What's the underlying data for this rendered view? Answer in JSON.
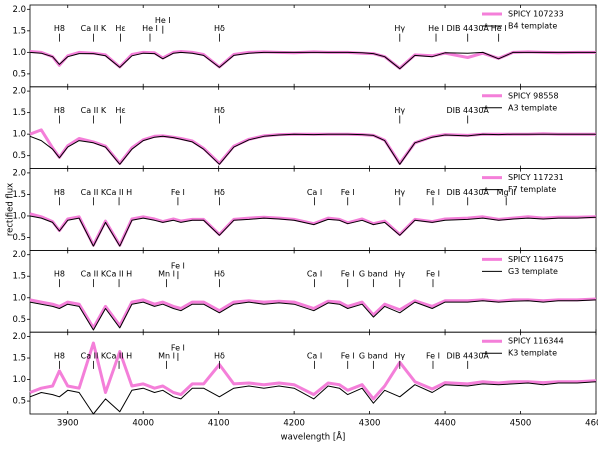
{
  "chart_data": [
    {
      "type": "line",
      "xlim": [
        3850,
        4600
      ],
      "ylim": [
        0.2,
        2.1
      ],
      "yticks": [
        0.5,
        {
          "value": 1.0,
          "label": "1.0"
        },
        1.5,
        {
          "value": 2.0,
          "label": "2.0"
        }
      ],
      "x": [
        3850,
        3865,
        3880,
        3889,
        3900,
        3915,
        3934,
        3950,
        3969,
        3985,
        4000,
        4015,
        4026,
        4040,
        4050,
        4065,
        4080,
        4101,
        4120,
        4140,
        4160,
        4180,
        4200,
        4226,
        4245,
        4260,
        4271,
        4290,
        4305,
        4320,
        4340,
        4360,
        4383,
        4400,
        4430,
        4450,
        4471,
        4490,
        4510,
        4530,
        4550,
        4575,
        4600
      ],
      "series": [
        {
          "name": "SPICY 107233",
          "color": "#f47fd9",
          "values": [
            1.02,
            1.0,
            0.9,
            0.7,
            0.92,
            1.0,
            0.98,
            0.94,
            0.66,
            0.95,
            1.0,
            0.99,
            0.87,
            1.0,
            1.02,
            1.0,
            0.95,
            0.66,
            0.95,
            1.0,
            1.01,
            1.0,
            0.99,
            1.01,
            1.0,
            1.0,
            1.0,
            0.98,
            0.97,
            0.9,
            0.63,
            0.94,
            0.92,
            0.98,
            0.88,
            0.98,
            0.86,
            1.0,
            1.01,
            1.0,
            0.99,
            1.0,
            1.0
          ]
        },
        {
          "name": "B4 template",
          "color": "#000000",
          "values": [
            1.0,
            0.98,
            0.9,
            0.72,
            0.9,
            0.97,
            0.97,
            0.92,
            0.65,
            0.92,
            0.98,
            0.97,
            0.85,
            0.98,
            1.0,
            0.98,
            0.93,
            0.65,
            0.93,
            0.98,
            1.0,
            1.0,
            1.0,
            1.0,
            1.0,
            1.0,
            1.0,
            0.99,
            0.97,
            0.9,
            0.62,
            0.93,
            0.9,
            0.99,
            0.98,
            1.0,
            0.85,
            1.0,
            1.0,
            1.0,
            1.0,
            1.0,
            1.0
          ]
        }
      ],
      "annotations": [
        {
          "text": "H8",
          "x": 3889
        },
        {
          "text": "Ca II K",
          "x": 3934
        },
        {
          "text": "Hε",
          "x": 3970
        },
        {
          "text": "He I",
          "x": 4009
        },
        {
          "text": "He I",
          "x": 4026
        },
        {
          "text": "Hδ",
          "x": 4101
        },
        {
          "text": "Hγ",
          "x": 4340
        },
        {
          "text": "He I",
          "x": 4388
        },
        {
          "text": "DIB 4430Å",
          "x": 4430
        },
        {
          "text": "He I",
          "x": 4471
        }
      ]
    },
    {
      "type": "line",
      "xlim": [
        3850,
        4600
      ],
      "ylim": [
        0.2,
        2.1
      ],
      "yticks": [
        0.5,
        {
          "value": 1.0,
          "label": "1.0"
        },
        1.5,
        {
          "value": 2.0,
          "label": "2.0"
        }
      ],
      "x": [
        3850,
        3865,
        3880,
        3889,
        3900,
        3915,
        3934,
        3950,
        3969,
        3985,
        4000,
        4015,
        4026,
        4040,
        4050,
        4065,
        4080,
        4101,
        4120,
        4140,
        4160,
        4180,
        4200,
        4226,
        4245,
        4260,
        4271,
        4290,
        4305,
        4320,
        4340,
        4360,
        4383,
        4400,
        4430,
        4450,
        4471,
        4490,
        4510,
        4530,
        4550,
        4575,
        4600
      ],
      "series": [
        {
          "name": "SPICY 98558",
          "color": "#f47fd9",
          "values": [
            1.0,
            1.1,
            0.68,
            0.46,
            0.73,
            0.9,
            0.82,
            0.72,
            0.32,
            0.68,
            0.87,
            0.95,
            0.96,
            0.93,
            0.9,
            0.84,
            0.67,
            0.32,
            0.72,
            0.88,
            0.96,
            0.99,
            1.0,
            1.0,
            1.0,
            1.0,
            1.0,
            0.99,
            0.97,
            0.86,
            0.32,
            0.8,
            0.94,
            0.99,
            0.97,
            1.0,
            1.0,
            1.0,
            1.0,
            1.01,
            1.0,
            1.0,
            1.0
          ]
        },
        {
          "name": "A3 template",
          "color": "#000000",
          "values": [
            0.95,
            0.85,
            0.65,
            0.45,
            0.7,
            0.85,
            0.8,
            0.7,
            0.3,
            0.65,
            0.85,
            0.93,
            0.95,
            0.92,
            0.88,
            0.82,
            0.65,
            0.3,
            0.7,
            0.87,
            0.95,
            0.98,
            1.0,
            0.99,
            1.0,
            1.0,
            1.0,
            0.99,
            0.97,
            0.85,
            0.3,
            0.8,
            0.93,
            0.98,
            0.96,
            1.0,
            0.99,
            1.0,
            1.0,
            1.0,
            1.0,
            1.0,
            1.0
          ]
        }
      ],
      "annotations": [
        {
          "text": "H8",
          "x": 3889
        },
        {
          "text": "Ca II K",
          "x": 3934
        },
        {
          "text": "Hε",
          "x": 3970
        },
        {
          "text": "Hδ",
          "x": 4101
        },
        {
          "text": "Hγ",
          "x": 4340
        },
        {
          "text": "DIB 4430Å",
          "x": 4430
        }
      ]
    },
    {
      "type": "line",
      "ylabel": "rectified flux",
      "xlim": [
        3850,
        4600
      ],
      "ylim": [
        0.2,
        2.1
      ],
      "yticks": [
        0.5,
        {
          "value": 1.0,
          "label": "1.0"
        },
        1.5,
        {
          "value": 2.0,
          "label": "2.0"
        }
      ],
      "x": [
        3850,
        3865,
        3880,
        3889,
        3900,
        3915,
        3934,
        3950,
        3969,
        3985,
        4000,
        4015,
        4026,
        4040,
        4050,
        4065,
        4080,
        4101,
        4120,
        4140,
        4160,
        4180,
        4200,
        4226,
        4245,
        4260,
        4271,
        4290,
        4305,
        4320,
        4340,
        4360,
        4383,
        4400,
        4430,
        4450,
        4471,
        4490,
        4510,
        4530,
        4550,
        4575,
        4600
      ],
      "series": [
        {
          "name": "SPICY 117231",
          "color": "#f47fd9",
          "values": [
            1.05,
            0.98,
            0.87,
            0.66,
            0.93,
            0.98,
            0.32,
            0.88,
            0.32,
            0.93,
            0.98,
            0.93,
            0.87,
            0.93,
            0.88,
            0.92,
            0.92,
            0.57,
            0.92,
            0.95,
            0.97,
            0.95,
            0.92,
            0.82,
            0.95,
            0.92,
            0.84,
            0.93,
            0.82,
            0.88,
            0.57,
            0.92,
            0.87,
            0.93,
            0.95,
            0.98,
            0.92,
            0.95,
            0.98,
            0.95,
            0.97,
            0.97,
            0.98
          ]
        },
        {
          "name": "F7 template",
          "color": "#000000",
          "values": [
            1.0,
            0.95,
            0.85,
            0.65,
            0.9,
            0.95,
            0.3,
            0.85,
            0.3,
            0.9,
            0.95,
            0.9,
            0.85,
            0.9,
            0.85,
            0.9,
            0.9,
            0.55,
            0.9,
            0.92,
            0.95,
            0.93,
            0.9,
            0.8,
            0.92,
            0.9,
            0.82,
            0.9,
            0.8,
            0.85,
            0.55,
            0.9,
            0.85,
            0.9,
            0.92,
            0.95,
            0.9,
            0.93,
            0.95,
            0.93,
            0.95,
            0.95,
            0.97
          ]
        }
      ],
      "annotations": [
        {
          "text": "H8",
          "x": 3889
        },
        {
          "text": "Ca II K",
          "x": 3934
        },
        {
          "text": "Ca II H",
          "x": 3968
        },
        {
          "text": "Fe I",
          "x": 4046
        },
        {
          "text": "Hδ",
          "x": 4101
        },
        {
          "text": "Ca I",
          "x": 4227
        },
        {
          "text": "Fe I",
          "x": 4271
        },
        {
          "text": "Hγ",
          "x": 4340
        },
        {
          "text": "Fe I",
          "x": 4384
        },
        {
          "text": "DIB 4430Å",
          "x": 4430
        },
        {
          "text": "Mg II",
          "x": 4481
        }
      ]
    },
    {
      "type": "line",
      "xlim": [
        3850,
        4600
      ],
      "ylim": [
        0.2,
        2.1
      ],
      "yticks": [
        0.5,
        {
          "value": 1.0,
          "label": "1.0"
        },
        1.5,
        {
          "value": 2.0,
          "label": "2.0"
        }
      ],
      "x": [
        3850,
        3865,
        3880,
        3889,
        3900,
        3915,
        3934,
        3950,
        3969,
        3985,
        4000,
        4015,
        4026,
        4040,
        4050,
        4065,
        4080,
        4101,
        4120,
        4140,
        4160,
        4180,
        4200,
        4226,
        4245,
        4260,
        4271,
        4290,
        4305,
        4320,
        4340,
        4360,
        4383,
        4400,
        4430,
        4450,
        4471,
        4490,
        4510,
        4530,
        4550,
        4575,
        4600
      ],
      "series": [
        {
          "name": "SPICY 116475",
          "color": "#f47fd9",
          "values": [
            0.95,
            0.9,
            0.85,
            0.8,
            0.9,
            0.85,
            0.3,
            0.8,
            0.35,
            0.9,
            0.95,
            0.85,
            0.9,
            0.8,
            0.75,
            0.9,
            0.9,
            0.7,
            0.9,
            0.93,
            0.9,
            0.92,
            0.9,
            0.75,
            0.92,
            0.9,
            0.8,
            0.9,
            0.6,
            0.85,
            0.72,
            0.93,
            0.8,
            0.93,
            0.93,
            0.95,
            0.92,
            0.95,
            0.95,
            0.93,
            0.95,
            0.95,
            0.97
          ]
        },
        {
          "name": "G3 template",
          "color": "#000000",
          "values": [
            0.9,
            0.85,
            0.8,
            0.75,
            0.85,
            0.8,
            0.25,
            0.75,
            0.3,
            0.85,
            0.9,
            0.8,
            0.85,
            0.75,
            0.7,
            0.85,
            0.85,
            0.65,
            0.85,
            0.9,
            0.85,
            0.88,
            0.85,
            0.7,
            0.88,
            0.85,
            0.75,
            0.85,
            0.55,
            0.8,
            0.65,
            0.9,
            0.75,
            0.9,
            0.9,
            0.93,
            0.9,
            0.92,
            0.93,
            0.9,
            0.93,
            0.93,
            0.95
          ]
        }
      ],
      "annotations": [
        {
          "text": "H8",
          "x": 3889
        },
        {
          "text": "Ca II K",
          "x": 3934
        },
        {
          "text": "Ca II H",
          "x": 3968
        },
        {
          "text": "Mn I",
          "x": 4031
        },
        {
          "text": "Fe I",
          "x": 4046
        },
        {
          "text": "Hδ",
          "x": 4101
        },
        {
          "text": "Ca I",
          "x": 4227
        },
        {
          "text": "Fe I",
          "x": 4271
        },
        {
          "text": "G band",
          "x": 4305
        },
        {
          "text": "Hγ",
          "x": 4340
        },
        {
          "text": "Fe I",
          "x": 4384
        }
      ]
    },
    {
      "type": "line",
      "xlabel": "wavelength [Å]",
      "xlim": [
        3850,
        4600
      ],
      "ylim": [
        0.2,
        2.1
      ],
      "yticks": [
        0.5,
        {
          "value": 1.0,
          "label": "1.0"
        },
        1.5,
        {
          "value": 2.0,
          "label": "2.0"
        }
      ],
      "xticks": [
        3900,
        4000,
        4100,
        4200,
        4300,
        4400,
        4500,
        4600
      ],
      "x": [
        3850,
        3865,
        3880,
        3889,
        3900,
        3915,
        3934,
        3950,
        3969,
        3985,
        4000,
        4015,
        4026,
        4040,
        4050,
        4065,
        4080,
        4101,
        4120,
        4140,
        4160,
        4180,
        4200,
        4226,
        4245,
        4260,
        4271,
        4290,
        4305,
        4320,
        4340,
        4360,
        4383,
        4400,
        4430,
        4450,
        4471,
        4490,
        4510,
        4530,
        4550,
        4575,
        4600
      ],
      "series": [
        {
          "name": "SPICY 116344",
          "color": "#f47fd9",
          "values": [
            0.7,
            0.8,
            0.85,
            1.2,
            0.85,
            0.8,
            1.85,
            0.7,
            1.65,
            0.85,
            0.9,
            0.8,
            0.85,
            0.7,
            0.65,
            0.9,
            0.9,
            1.35,
            0.9,
            0.92,
            0.88,
            0.92,
            0.88,
            0.65,
            0.92,
            0.88,
            0.75,
            0.88,
            0.55,
            0.85,
            1.4,
            0.95,
            0.78,
            0.93,
            0.9,
            0.95,
            0.92,
            0.95,
            0.95,
            0.93,
            0.95,
            0.95,
            0.97
          ]
        },
        {
          "name": "K3 template",
          "color": "#000000",
          "values": [
            0.6,
            0.7,
            0.65,
            0.6,
            0.75,
            0.7,
            0.2,
            0.55,
            0.25,
            0.75,
            0.8,
            0.7,
            0.75,
            0.6,
            0.55,
            0.8,
            0.8,
            0.6,
            0.8,
            0.85,
            0.8,
            0.85,
            0.8,
            0.55,
            0.85,
            0.8,
            0.65,
            0.8,
            0.45,
            0.75,
            0.6,
            0.88,
            0.7,
            0.88,
            0.85,
            0.9,
            0.88,
            0.9,
            0.92,
            0.88,
            0.92,
            0.92,
            0.95
          ]
        }
      ],
      "annotations": [
        {
          "text": "H8",
          "x": 3889
        },
        {
          "text": "Ca II K",
          "x": 3934
        },
        {
          "text": "Ca II H",
          "x": 3968
        },
        {
          "text": "Mn I",
          "x": 4031
        },
        {
          "text": "Fe I",
          "x": 4046
        },
        {
          "text": "Hδ",
          "x": 4101
        },
        {
          "text": "Ca I",
          "x": 4227
        },
        {
          "text": "Fe I",
          "x": 4271
        },
        {
          "text": "G band",
          "x": 4305
        },
        {
          "text": "Hγ",
          "x": 4340
        },
        {
          "text": "Fe I",
          "x": 4384
        },
        {
          "text": "DIB 4430Å",
          "x": 4430
        }
      ]
    }
  ]
}
